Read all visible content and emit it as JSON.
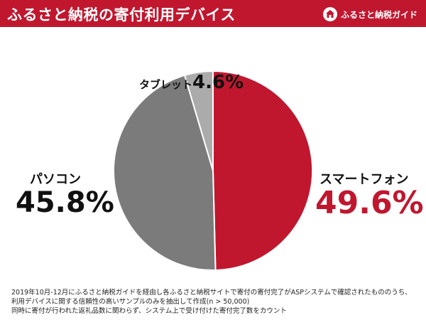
{
  "header": {
    "title": "ふるさと納税の寄付利用デバイス",
    "brand": "ふるさと納税ガイド",
    "brand_icon": "house-logo-icon"
  },
  "colors": {
    "accent": "#c0172f",
    "pc": "#7b7b7b",
    "tablet": "#ababab"
  },
  "chart_data": {
    "type": "pie",
    "title": "ふるさと納税の寄付利用デバイス",
    "slices": [
      {
        "name": "スマートフォン",
        "value": 49.6,
        "label": "49.6%",
        "color": "#c0172f"
      },
      {
        "name": "パソコン",
        "value": 45.8,
        "label": "45.8%",
        "color": "#7b7b7b"
      },
      {
        "name": "タブレット",
        "value": 4.6,
        "label": "4.6%",
        "color": "#ababab"
      }
    ],
    "start": "12 o'clock",
    "direction": "clockwise"
  },
  "footnote": {
    "line1": "2019年10月-12月にふるさと納税ガイドを経由し各ふるさと納税サイトで寄付の寄付完了がASPシステムで確認されたもののうち、",
    "line2": "利用デバイスに関する信頼性の高いサンプルのみを抽出して作成(n > 50,000)",
    "line3": "同時に寄付が行われた返礼品数に関わらず、システム上で受け付けた寄付完了数をカウント"
  }
}
